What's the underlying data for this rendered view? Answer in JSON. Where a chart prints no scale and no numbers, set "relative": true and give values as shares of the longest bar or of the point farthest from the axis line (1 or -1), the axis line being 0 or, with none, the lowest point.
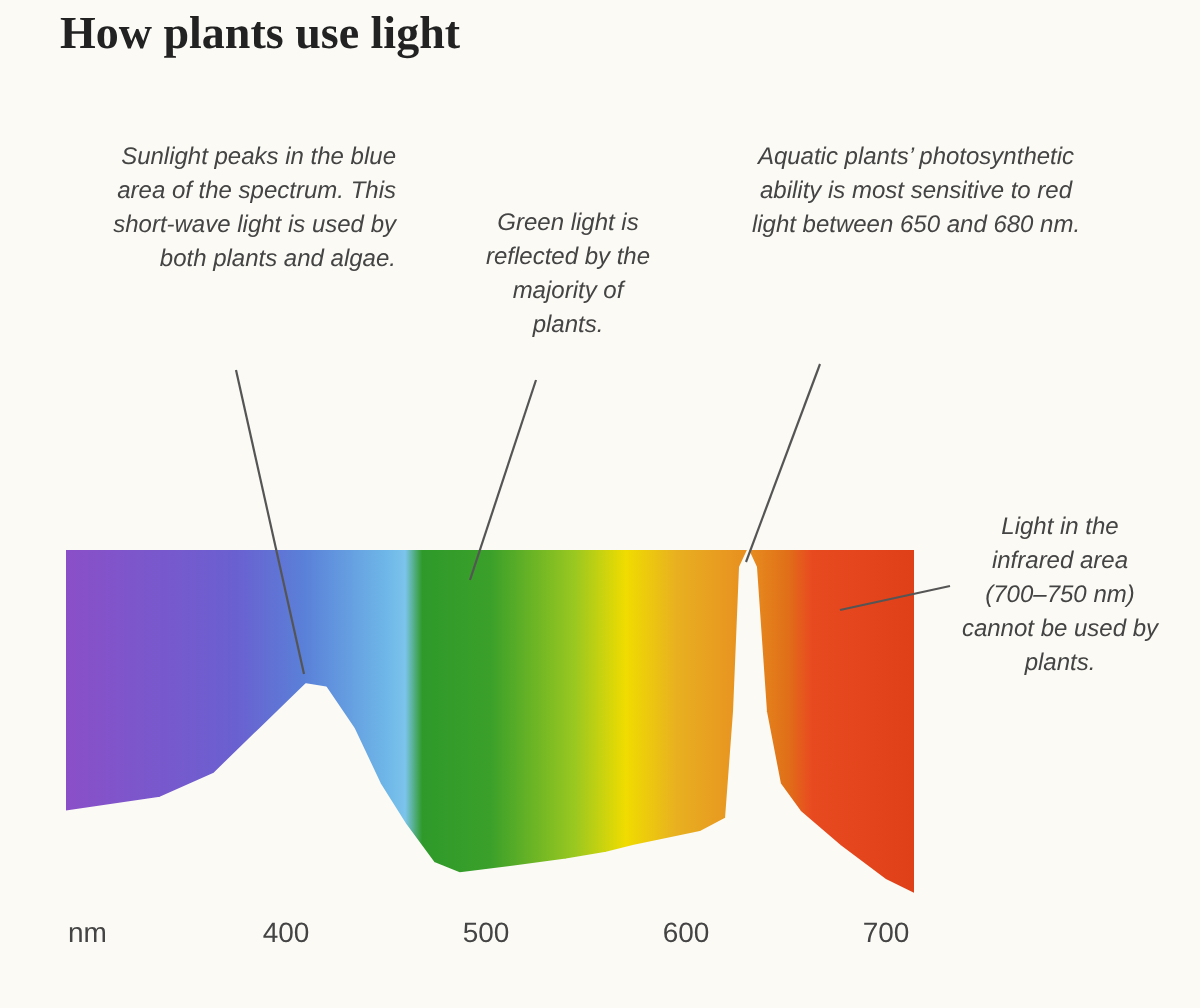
{
  "chart_data": {
    "type": "area",
    "title": "How plants use light",
    "xlabel": "nm",
    "relative": true,
    "x": [
      290,
      337,
      364,
      387,
      410,
      420,
      434,
      447,
      460,
      474,
      487,
      514,
      540,
      560,
      574,
      607,
      620,
      624,
      627,
      631,
      635,
      640,
      647,
      657,
      677,
      700,
      714
    ],
    "series": [
      {
        "color": "#fbfaf5",
        "values": [
          0.24,
          0.28,
          0.35,
          0.48,
          0.61,
          0.6,
          0.48,
          0.32,
          0.2,
          0.09,
          0.06,
          0.08,
          0.1,
          0.12,
          0.14,
          0.18,
          0.22,
          0.53,
          0.95,
          1,
          0.95,
          0.53,
          0.32,
          0.24,
          0.14,
          0.04,
          0
        ]
      }
    ],
    "xlim": [
      290,
      714
    ],
    "xticks": [
      400,
      500,
      600,
      700
    ],
    "grid": false,
    "annotations": [
      "Sunlight peaks in the blue area of the spectrum. This short-wave light is used by both plants and algae.",
      "Green light is reflected by the majority of plants.",
      "Aquatic plants’ photosynthetic ability is most sensitive to red light between 650 and 680 nm.",
      "Light in the infrared area (700–750 nm) cannot be used by plants."
    ]
  }
}
